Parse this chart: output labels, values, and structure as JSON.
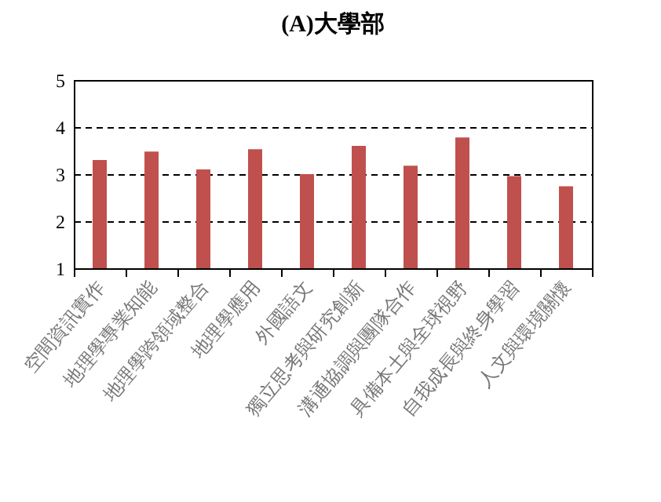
{
  "chart_data": {
    "type": "bar",
    "title": "(A)大學部",
    "categories": [
      "空間資訊實作",
      "地理學專業知能",
      "地理學跨領域整合",
      "地理學應用",
      "外國語文",
      "獨立思考與研究創新",
      "溝通協調與團隊合作",
      "具備本土與全球視野",
      "自我成長與終身學習",
      "人文與環境關懷"
    ],
    "values": [
      3.3,
      3.48,
      3.1,
      3.53,
      3.0,
      3.6,
      3.18,
      3.78,
      2.96,
      2.74
    ],
    "color": "#c0504d",
    "ylim": [
      1,
      5
    ],
    "yticks": [
      1,
      2,
      3,
      4,
      5
    ],
    "grid": "y"
  }
}
